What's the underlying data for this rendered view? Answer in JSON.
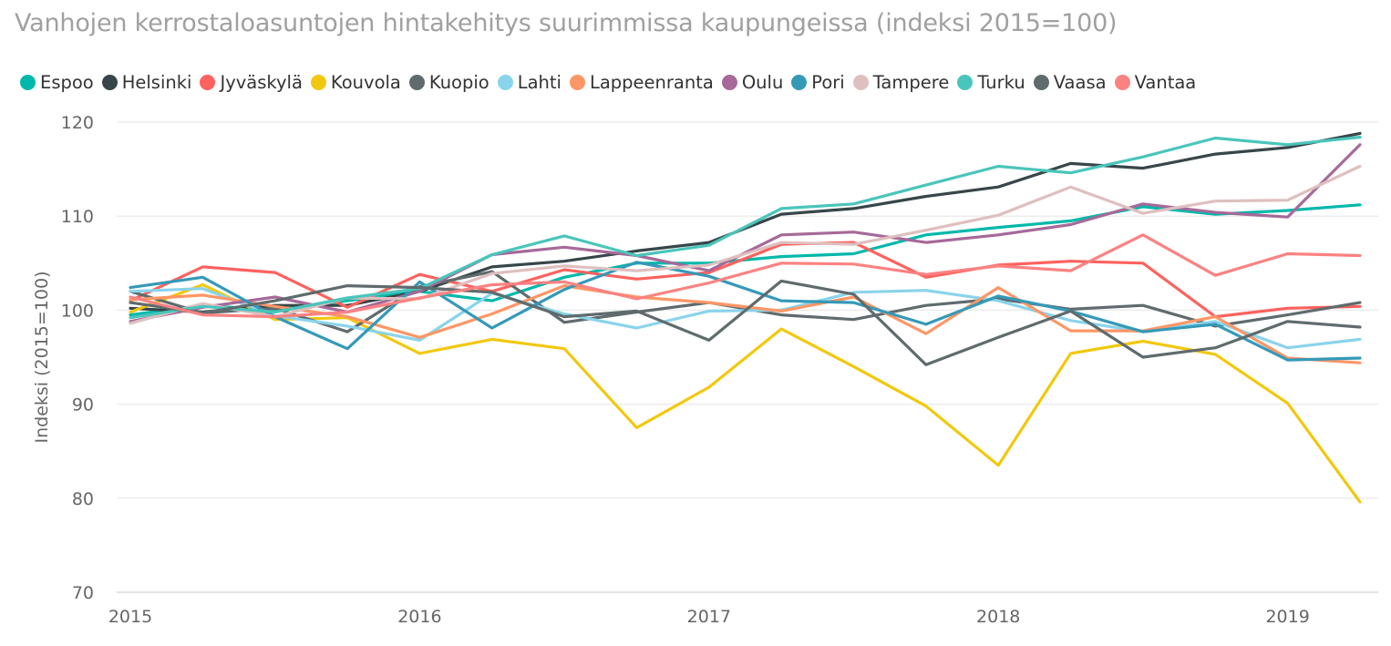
{
  "chart_data": {
    "type": "line",
    "title": "Vanhojen kerrostaloasuntojen hintakehitys suurimmissa kaupungeissa (indeksi 2015=100)",
    "xlabel": "",
    "ylabel": "Indeksi (2015=100)",
    "x_ticks": [
      "2015",
      "2016",
      "2017",
      "2018",
      "2019"
    ],
    "y_ticks": [
      70,
      80,
      90,
      100,
      110,
      120
    ],
    "ylim": [
      70,
      120
    ],
    "xlim": [
      2015.0,
      2019.375
    ],
    "x": [
      2015.0,
      2015.25,
      2015.5,
      2015.75,
      2016.0,
      2016.25,
      2016.5,
      2016.75,
      2017.0,
      2017.25,
      2017.5,
      2017.75,
      2018.0,
      2018.25,
      2018.5,
      2018.75,
      2019.0,
      2019.25
    ],
    "grid": "horizontal",
    "legend_position": "top",
    "series": [
      {
        "name": "Espoo",
        "color": "#01B8AA",
        "values": [
          99.5,
          100.5,
          100.0,
          101.0,
          102.0,
          101.0,
          103.5,
          105.0,
          105.0,
          105.7,
          106.0,
          108.0,
          108.8,
          109.5,
          111.0,
          110.2,
          110.6,
          111.2
        ]
      },
      {
        "name": "Helsinki",
        "color": "#374649",
        "values": [
          100.2,
          99.8,
          100.5,
          100.5,
          102.0,
          104.6,
          105.2,
          106.3,
          107.2,
          110.2,
          110.8,
          112.1,
          113.1,
          115.6,
          115.1,
          116.6,
          117.3,
          118.8
        ]
      },
      {
        "name": "Jyväskylä",
        "color": "#FD625E",
        "values": [
          101.0,
          104.6,
          104.0,
          100.3,
          103.8,
          102.0,
          104.3,
          103.3,
          104.0,
          107.0,
          107.2,
          103.5,
          104.8,
          105.2,
          105.0,
          99.3,
          100.2,
          100.4
        ]
      },
      {
        "name": "Kouvola",
        "color": "#F2C80F",
        "values": [
          99.8,
          102.7,
          99.0,
          99.2,
          95.4,
          96.9,
          95.9,
          87.5,
          91.8,
          98.0,
          94.0,
          89.8,
          83.5,
          95.4,
          96.7,
          95.3,
          90.1,
          79.6
        ]
      },
      {
        "name": "Kuopio",
        "color": "#5F6B6D",
        "values": [
          102.0,
          99.7,
          100.2,
          97.7,
          102.5,
          104.1,
          98.7,
          99.8,
          100.8,
          99.5,
          99.0,
          100.5,
          101.2,
          100.1,
          100.5,
          98.3,
          99.5,
          100.8
        ]
      },
      {
        "name": "Lahti",
        "color": "#8AD4EB",
        "values": [
          102.0,
          102.3,
          99.4,
          98.3,
          96.8,
          101.8,
          99.6,
          98.1,
          99.9,
          100.0,
          101.9,
          102.1,
          101.0,
          98.9,
          97.7,
          98.8,
          96.0,
          96.9
        ]
      },
      {
        "name": "Lappeenranta",
        "color": "#FE9666",
        "values": [
          101.1,
          101.6,
          100.4,
          99.3,
          97.1,
          99.6,
          102.6,
          101.4,
          100.8,
          99.9,
          101.4,
          97.5,
          102.4,
          97.8,
          97.8,
          99.3,
          94.9,
          94.4
        ]
      },
      {
        "name": "Oulu",
        "color": "#A66999",
        "values": [
          98.8,
          100.3,
          101.4,
          99.8,
          102.0,
          105.9,
          106.7,
          105.8,
          104.2,
          108.0,
          108.3,
          107.2,
          108.0,
          109.1,
          111.3,
          110.4,
          109.9,
          117.6
        ]
      },
      {
        "name": "Pori",
        "color": "#3599B8",
        "values": [
          102.4,
          103.5,
          99.3,
          95.9,
          103.0,
          98.1,
          102.2,
          105.1,
          103.6,
          101.0,
          100.8,
          98.5,
          101.5,
          99.9,
          97.7,
          98.5,
          94.7,
          94.9
        ]
      },
      {
        "name": "Tampere",
        "color": "#DFBFBF",
        "values": [
          98.6,
          100.7,
          99.3,
          101.3,
          101.2,
          103.9,
          104.7,
          104.2,
          104.8,
          107.2,
          107.0,
          108.5,
          110.1,
          113.1,
          110.3,
          111.6,
          111.7,
          115.3
        ]
      },
      {
        "name": "Turku",
        "color": "#4AC5BB",
        "values": [
          99.2,
          100.4,
          99.8,
          101.3,
          102.3,
          105.9,
          107.9,
          105.8,
          106.9,
          110.8,
          111.3,
          113.3,
          115.3,
          114.6,
          116.3,
          118.3,
          117.6,
          118.4
        ]
      },
      {
        "name": "Vaasa",
        "color": "#5F6B6D",
        "values": [
          100.8,
          99.7,
          101.0,
          102.6,
          102.4,
          101.9,
          99.3,
          99.9,
          96.8,
          103.1,
          101.7,
          94.2,
          97.1,
          99.9,
          95.0,
          96.0,
          98.8,
          98.2
        ]
      },
      {
        "name": "Vantaa",
        "color": "#FB8281",
        "values": [
          101.4,
          99.5,
          99.3,
          99.8,
          101.3,
          102.7,
          103.0,
          101.2,
          102.9,
          105.0,
          104.9,
          103.8,
          104.7,
          104.2,
          108.0,
          103.7,
          106.0,
          105.8
        ]
      }
    ]
  }
}
